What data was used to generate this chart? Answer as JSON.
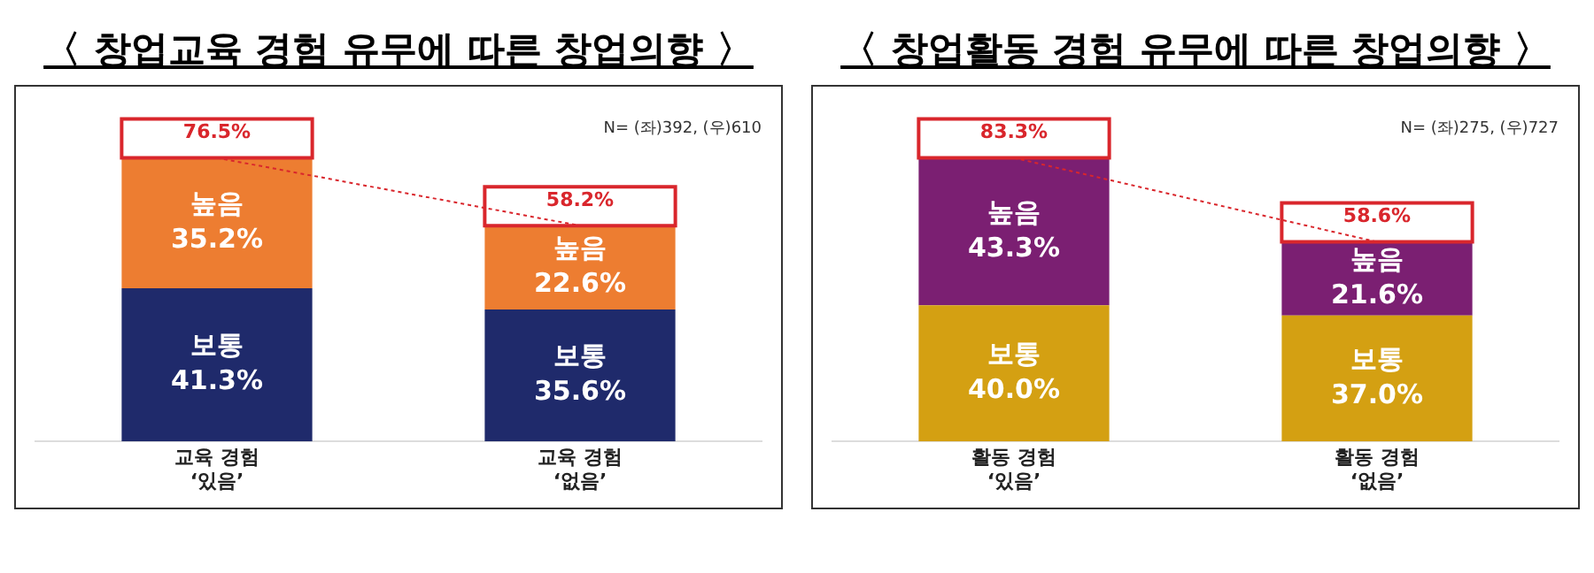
{
  "chart_data": [
    {
      "type": "bar",
      "title": "〈 창업교육 경험 유무에 따른 창업의향 〉",
      "categories": [
        "교육 경험\n‘있음’",
        "교육 경험\n‘없음’"
      ],
      "stacked": true,
      "legend": false,
      "grid": false,
      "tick_labels": "x",
      "series": [
        {
          "name": "보통",
          "color": "#1f2a6b",
          "values": [
            41.3,
            35.6
          ],
          "value_labels": [
            "41.3%",
            "35.6%"
          ]
        },
        {
          "name": "높음",
          "color": "#ed7d31",
          "values": [
            35.2,
            22.6
          ],
          "value_labels": [
            "35.2%",
            "22.6%"
          ]
        },
        {
          "type": "line",
          "color": "#d9262c",
          "values": [
            76.5,
            58.2
          ],
          "line_style": "dotted",
          "marker": "none"
        }
      ],
      "totals": [
        "76.5%",
        "58.2%"
      ],
      "annotations": [
        "N= (좌)392, (우)610"
      ]
    },
    {
      "type": "bar",
      "title": "〈 창업활동 경험 유무에 따른 창업의향 〉",
      "categories": [
        "활동 경험\n‘있음’",
        "활동 경험\n‘없음’"
      ],
      "stacked": true,
      "legend": false,
      "grid": false,
      "tick_labels": "x",
      "series": [
        {
          "name": "보통",
          "color": "#d4a012",
          "values": [
            40.0,
            37.0
          ],
          "value_labels": [
            "40.0%",
            "37.0%"
          ]
        },
        {
          "name": "높음",
          "color": "#7b1f72",
          "values": [
            43.3,
            21.6
          ],
          "value_labels": [
            "43.3%",
            "21.6%"
          ]
        },
        {
          "type": "line",
          "color": "#d9262c",
          "values": [
            83.3,
            58.6
          ],
          "line_style": "dotted",
          "marker": "none"
        }
      ],
      "totals": [
        "83.3%",
        "58.6%"
      ],
      "annotations": [
        "N= (좌)275, (우)727"
      ]
    }
  ]
}
